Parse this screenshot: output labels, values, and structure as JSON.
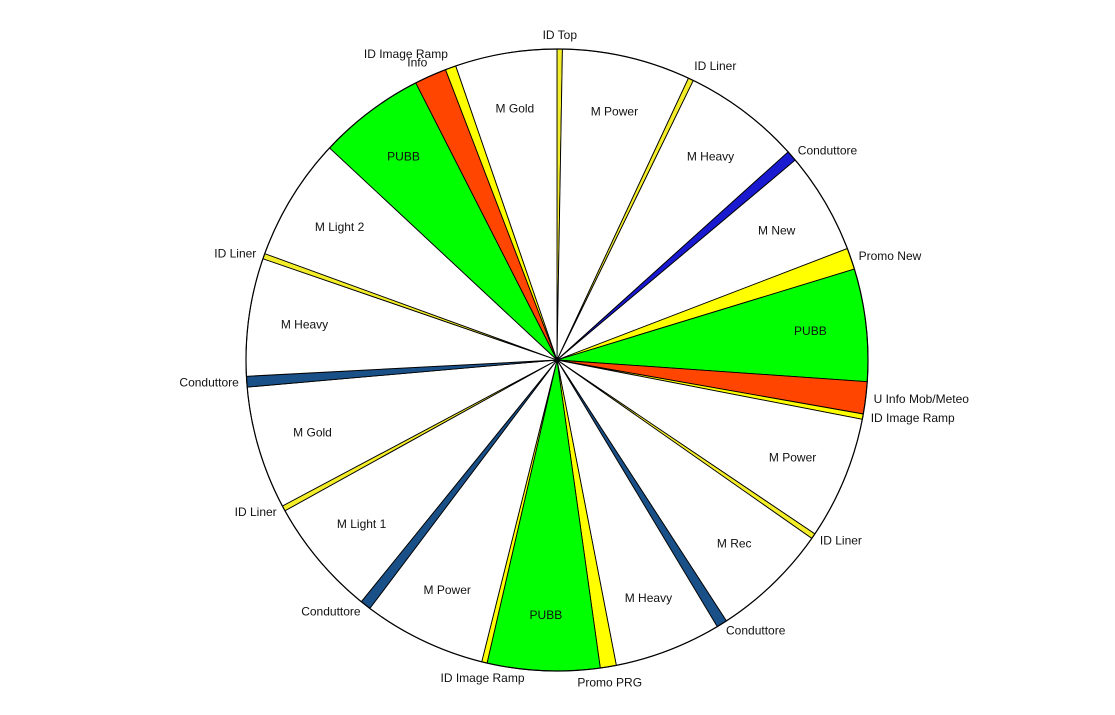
{
  "chart_data": {
    "type": "pie",
    "title": "",
    "unit": "degrees",
    "slices": [
      {
        "label": "ID Top",
        "value": 1,
        "color": "#F4EE2A",
        "label_side": "outside"
      },
      {
        "label": "M Power",
        "value": 24,
        "color": "#FFFFFF",
        "label_side": "inside"
      },
      {
        "label": "ID Liner",
        "value": 1,
        "color": "#F4EE2A",
        "label_side": "outside"
      },
      {
        "label": "M Heavy",
        "value": 22,
        "color": "#FFFFFF",
        "label_side": "inside"
      },
      {
        "label": "Conduttore",
        "value": 2,
        "color": "#1A1AD0",
        "label_side": "outside"
      },
      {
        "label": "M New",
        "value": 19,
        "color": "#FFFFFF",
        "label_side": "inside"
      },
      {
        "label": "Promo New",
        "value": 4,
        "color": "#FFFF00",
        "label_side": "outside"
      },
      {
        "label": "PUBB",
        "value": 21,
        "color": "#00FF00",
        "label_side": "inside"
      },
      {
        "label": "U Info Mob/Meteo",
        "value": 6,
        "color": "#FF4500",
        "label_side": "outside"
      },
      {
        "label": "ID Image Ramp",
        "value": 1,
        "color": "#FFFF00",
        "label_side": "outside"
      },
      {
        "label": "M Power",
        "value": 23,
        "color": "#FFFFFF",
        "label_side": "inside"
      },
      {
        "label": "ID Liner",
        "value": 1,
        "color": "#F4EE2A",
        "label_side": "outside"
      },
      {
        "label": "M Rec",
        "value": 22,
        "color": "#FFFFFF",
        "label_side": "inside"
      },
      {
        "label": "Conduttore",
        "value": 2,
        "color": "#1A5088",
        "label_side": "outside"
      },
      {
        "label": "M Heavy",
        "value": 20,
        "color": "#FFFFFF",
        "label_side": "inside"
      },
      {
        "label": "Promo PRG",
        "value": 3,
        "color": "#FFFF00",
        "label_side": "outside"
      },
      {
        "label": "PUBB",
        "value": 21,
        "color": "#00FF00",
        "label_side": "inside"
      },
      {
        "label": "ID Image Ramp",
        "value": 1,
        "color": "#FFFF00",
        "label_side": "outside"
      },
      {
        "label": "M Power",
        "value": 23,
        "color": "#FFFFFF",
        "label_side": "inside"
      },
      {
        "label": "Conduttore",
        "value": 2,
        "color": "#1A5088",
        "label_side": "outside"
      },
      {
        "label": "M Light 1",
        "value": 22,
        "color": "#FFFFFF",
        "label_side": "inside"
      },
      {
        "label": "ID Liner",
        "value": 1,
        "color": "#F4EE2A",
        "label_side": "outside"
      },
      {
        "label": "M Gold",
        "value": 23,
        "color": "#FFFFFF",
        "label_side": "inside"
      },
      {
        "label": "Conduttore",
        "value": 2,
        "color": "#1A5088",
        "label_side": "outside"
      },
      {
        "label": "M Heavy",
        "value": 22,
        "color": "#FFFFFF",
        "label_side": "inside"
      },
      {
        "label": "ID Liner",
        "value": 1,
        "color": "#F4EE2A",
        "label_side": "outside"
      },
      {
        "label": "M Light 2",
        "value": 23,
        "color": "#FFFFFF",
        "label_side": "inside"
      },
      {
        "label": "PUBB",
        "value": 20,
        "color": "#00FF00",
        "label_side": "inside"
      },
      {
        "label": "Info",
        "value": 6,
        "color": "#FF4500",
        "label_side": "outside"
      },
      {
        "label": "ID Image Ramp",
        "value": 2,
        "color": "#FFFF00",
        "label_side": "outside"
      },
      {
        "label": "M Gold",
        "value": 19,
        "color": "#FFFFFF",
        "label_side": "inside"
      }
    ]
  }
}
